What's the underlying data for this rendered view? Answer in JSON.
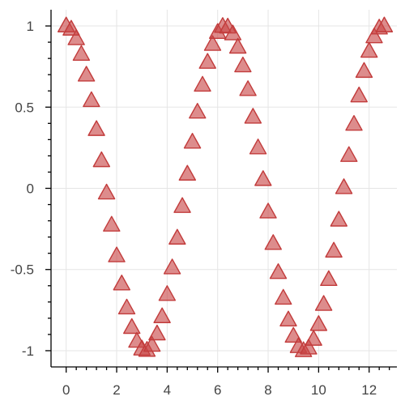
{
  "chart_data": {
    "type": "scatter",
    "title": "",
    "xlabel": "",
    "ylabel": "",
    "xlim": [
      -0.6,
      13.1
    ],
    "ylim": [
      -1.1,
      1.1
    ],
    "x_ticks": [
      {
        "value": 0,
        "label": "0"
      },
      {
        "value": 2,
        "label": "2"
      },
      {
        "value": 4,
        "label": "4"
      },
      {
        "value": 6,
        "label": "6"
      },
      {
        "value": 8,
        "label": "8"
      },
      {
        "value": 10,
        "label": "10"
      },
      {
        "value": 12,
        "label": "12"
      }
    ],
    "y_ticks": [
      {
        "value": 1,
        "label": "1"
      },
      {
        "value": 0.5,
        "label": "0.5"
      },
      {
        "value": 0,
        "label": "0"
      },
      {
        "value": -0.5,
        "label": "-0.5"
      },
      {
        "value": -1,
        "label": "-1"
      }
    ],
    "grid": true,
    "marker": "triangle",
    "colors": {
      "marker_fill": "#c84646",
      "marker_stroke": "#c23b3b",
      "grid": "#e5e5e5",
      "axis": "#000000"
    },
    "series": [
      {
        "x": [
          0,
          0.2,
          0.4,
          0.6,
          0.8,
          1.0,
          1.2,
          1.4,
          1.6,
          1.8,
          2.0,
          2.2,
          2.4,
          2.6,
          2.8,
          3.0,
          3.2,
          3.4,
          3.6,
          3.8,
          4.0,
          4.2,
          4.4,
          4.6,
          4.8,
          5.0,
          5.2,
          5.4,
          5.6,
          5.8,
          6.0,
          6.2,
          6.4,
          6.6,
          6.8,
          7.0,
          7.2,
          7.4,
          7.6,
          7.8,
          8.0,
          8.2,
          8.4,
          8.6,
          8.8,
          9.0,
          9.2,
          9.4,
          9.6,
          9.8,
          10.0,
          10.2,
          10.4,
          10.6,
          10.8,
          11.0,
          11.2,
          11.4,
          11.6,
          11.8,
          12.0,
          12.2,
          12.4,
          12.6
        ],
        "y": [
          1.0,
          0.98,
          0.921,
          0.825,
          0.697,
          0.54,
          0.362,
          0.17,
          -0.029,
          -0.227,
          -0.416,
          -0.589,
          -0.737,
          -0.857,
          -0.942,
          -0.99,
          -0.998,
          -0.967,
          -0.897,
          -0.791,
          -0.654,
          -0.49,
          -0.307,
          -0.112,
          0.087,
          0.284,
          0.469,
          0.635,
          0.776,
          0.886,
          0.96,
          0.997,
          0.993,
          0.951,
          0.869,
          0.754,
          0.608,
          0.438,
          0.249,
          0.054,
          -0.146,
          -0.34,
          -0.519,
          -0.677,
          -0.811,
          -0.911,
          -0.975,
          -1.0,
          -0.984,
          -0.93,
          -0.839,
          -0.715,
          -0.562,
          -0.387,
          -0.196,
          0.004,
          0.202,
          0.394,
          0.569,
          0.72,
          0.844,
          0.933,
          0.987,
          1.0
        ]
      }
    ]
  }
}
